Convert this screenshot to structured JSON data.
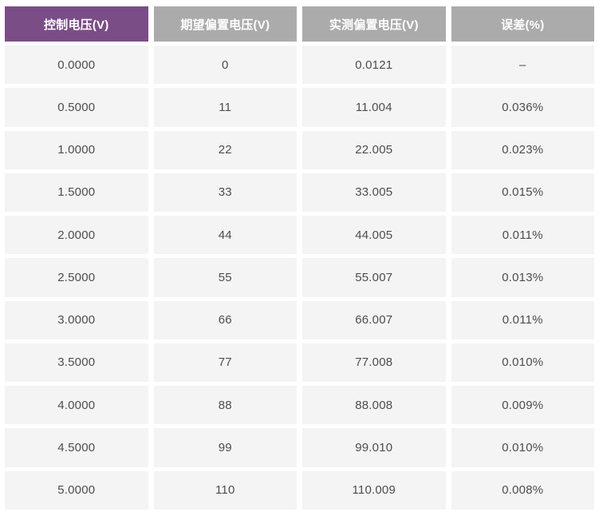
{
  "colors": {
    "header_accent": "#7b4d87",
    "header_gray": "#ababab",
    "row_background": "#f4f4f4",
    "header_text": "#ffffff",
    "cell_text": "#4d4d4f",
    "page_background": "#ffffff"
  },
  "chart_data": {
    "type": "table",
    "columns": [
      "控制电压(V)",
      "期望偏置电压(V)",
      "实测偏置电压(V)",
      "误差(%)"
    ],
    "rows": [
      [
        "0.0000",
        "0",
        "0.0121",
        "–"
      ],
      [
        "0.5000",
        "11",
        "11.004",
        "0.036%"
      ],
      [
        "1.0000",
        "22",
        "22.005",
        "0.023%"
      ],
      [
        "1.5000",
        "33",
        "33.005",
        "0.015%"
      ],
      [
        "2.0000",
        "44",
        "44.005",
        "0.011%"
      ],
      [
        "2.5000",
        "55",
        "55.007",
        "0.013%"
      ],
      [
        "3.0000",
        "66",
        "66.007",
        "0.011%"
      ],
      [
        "3.5000",
        "77",
        "77.008",
        "0.010%"
      ],
      [
        "4.0000",
        "88",
        "88.008",
        "0.009%"
      ],
      [
        "4.5000",
        "99",
        "99.010",
        "0.010%"
      ],
      [
        "5.0000",
        "110",
        "110.009",
        "0.008%"
      ]
    ]
  }
}
